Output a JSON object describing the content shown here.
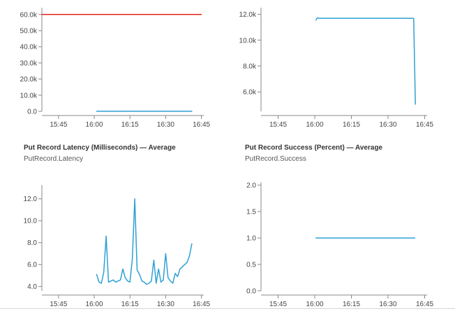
{
  "chart_data": [
    {
      "type": "line",
      "title": "",
      "subtitle": "",
      "x_ticks": [
        "15:45",
        "16:00",
        "16:15",
        "16:30",
        "16:45"
      ],
      "x_tick_minutes": [
        945,
        960,
        975,
        990,
        1005
      ],
      "xlim_minutes": [
        938,
        1006
      ],
      "y_ticks": [
        "0.0",
        "10.0k",
        "20.0k",
        "30.0k",
        "40.0k",
        "50.0k",
        "60.0k"
      ],
      "y_tick_values": [
        0,
        10000,
        20000,
        30000,
        40000,
        50000,
        60000
      ],
      "ylim": [
        0,
        62500
      ],
      "grid": false,
      "series": [
        {
          "color": "#e8231c",
          "x": [
            938,
            1005
          ],
          "y": [
            60000,
            60000
          ]
        },
        {
          "color": "#2ea1d3",
          "x": [
            961,
            1001
          ],
          "y": [
            40,
            40
          ]
        }
      ]
    },
    {
      "type": "line",
      "title": "",
      "subtitle": "",
      "x_ticks": [
        "15:45",
        "16:00",
        "16:15",
        "16:30",
        "16:45"
      ],
      "x_tick_minutes": [
        945,
        960,
        975,
        990,
        1005
      ],
      "xlim_minutes": [
        938,
        1006
      ],
      "y_ticks": [
        "6.0k",
        "8.0k",
        "10.0k",
        "12.0k"
      ],
      "y_tick_values": [
        6000,
        8000,
        10000,
        12000
      ],
      "ylim": [
        4500,
        12300
      ],
      "grid": false,
      "series": [
        {
          "color": "#2ea1d3",
          "x": [
            960.5,
            961.0,
            962,
            965,
            970,
            975,
            980,
            985,
            990,
            995,
            998,
            1000,
            1000.5,
            1001.2
          ],
          "y": [
            11550,
            11720,
            11700,
            11690,
            11700,
            11690,
            11700,
            11690,
            11700,
            11690,
            11700,
            11700,
            11680,
            5050
          ]
        }
      ]
    },
    {
      "type": "line",
      "title": "Put Record Latency (Milliseconds) — Average",
      "subtitle": "PutRecord.Latency",
      "x_ticks": [
        "15:45",
        "16:00",
        "16:15",
        "16:30",
        "16:45"
      ],
      "x_tick_minutes": [
        945,
        960,
        975,
        990,
        1005
      ],
      "xlim_minutes": [
        938,
        1006
      ],
      "y_ticks": [
        "4.0",
        "6.0",
        "8.0",
        "10.0",
        "12.0"
      ],
      "y_tick_values": [
        4,
        6,
        8,
        10,
        12
      ],
      "ylim": [
        3.6,
        13.0
      ],
      "grid": false,
      "series": [
        {
          "color": "#2ea1d3",
          "x": [
            961,
            962,
            963,
            964,
            965,
            966,
            967,
            968,
            969,
            970,
            971,
            972,
            973,
            974,
            975,
            976,
            977,
            978,
            979,
            980,
            981,
            982,
            983,
            984,
            985,
            986,
            987,
            988,
            989,
            990,
            991,
            992,
            993,
            994,
            995,
            996,
            997,
            998,
            999,
            1000,
            1001
          ],
          "y": [
            5.1,
            4.4,
            4.3,
            5.3,
            8.6,
            4.4,
            4.5,
            4.6,
            4.4,
            4.5,
            4.6,
            5.6,
            4.8,
            4.5,
            4.4,
            6.5,
            12.0,
            5.5,
            5.1,
            4.5,
            4.4,
            4.2,
            4.3,
            4.5,
            6.4,
            4.3,
            5.6,
            4.4,
            4.6,
            7.0,
            4.8,
            4.5,
            4.3,
            5.2,
            4.9,
            5.6,
            5.8,
            6.0,
            6.2,
            6.8,
            7.9
          ]
        }
      ]
    },
    {
      "type": "line",
      "title": "Put Record Success (Percent) — Average",
      "subtitle": "PutRecord.Success",
      "x_ticks": [
        "15:45",
        "16:00",
        "16:15",
        "16:30",
        "16:45"
      ],
      "x_tick_minutes": [
        945,
        960,
        975,
        990,
        1005
      ],
      "xlim_minutes": [
        938,
        1006
      ],
      "y_ticks": [
        "0.0",
        "0.5",
        "1.0",
        "1.5",
        "2.0"
      ],
      "y_tick_values": [
        0,
        0.5,
        1.0,
        1.5,
        2.0
      ],
      "ylim": [
        0,
        2.0
      ],
      "grid": false,
      "series": [
        {
          "color": "#2ea1d3",
          "x": [
            960.5,
            1001
          ],
          "y": [
            1.0,
            1.0
          ]
        }
      ]
    }
  ]
}
